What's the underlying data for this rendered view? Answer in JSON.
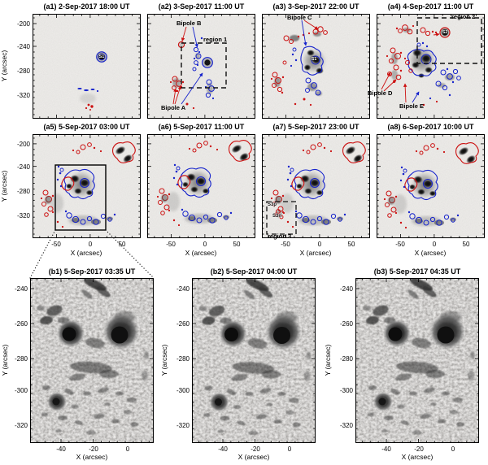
{
  "panels": {
    "a": [
      {
        "title": "(a1) 2-Sep-2017 18:00 UT",
        "spot": "S1"
      },
      {
        "title": "(a2) 3-Sep-2017 11:00 UT",
        "bipole_b": "Bipole B",
        "region": "region 1",
        "bipole_a": "Bipole A"
      },
      {
        "title": "(a3) 3-Sep-2017 22:00 UT",
        "bipole_c": "Bipole C",
        "spot": "S1"
      },
      {
        "title": "(a4) 4-Sep-2017 11:00 UT",
        "region": "region 2",
        "spot": "S2",
        "bipole_d": "Bipole D",
        "bipole_e": "Bipole E"
      },
      {
        "title": "(a5) 5-Sep-2017 03:00 UT"
      },
      {
        "title": "(a6) 5-Sep-2017 11:00 UT"
      },
      {
        "title": "(a7) 5-Sep-2017 23:00 UT",
        "s3p": "S3p",
        "s3n": "S3n",
        "region": "region 3"
      },
      {
        "title": "(a8) 6-Sep-2017 10:00 UT"
      }
    ],
    "b": [
      {
        "title": "(b1) 5-Sep-2017 03:35 UT"
      },
      {
        "title": "(b2) 5-Sep-2017 04:00 UT"
      },
      {
        "title": "(b3) 5-Sep-2017 04:35 UT"
      }
    ]
  },
  "axes": {
    "x_label": "X (arcsec)",
    "y_label": "Y (arcsec)",
    "a_x_ticks": [
      "-50",
      "0",
      "50"
    ],
    "a_y_ticks": [
      "-200",
      "-240",
      "-280",
      "-320"
    ],
    "b_x_ticks": [
      "-40",
      "-20",
      "0"
    ],
    "b_y_ticks": [
      "-240",
      "-260",
      "-280",
      "-300",
      "-320"
    ]
  },
  "colors": {
    "positive_contour": "#cc1111",
    "negative_contour": "#1522cc",
    "panel_background": "#eceae7"
  }
}
